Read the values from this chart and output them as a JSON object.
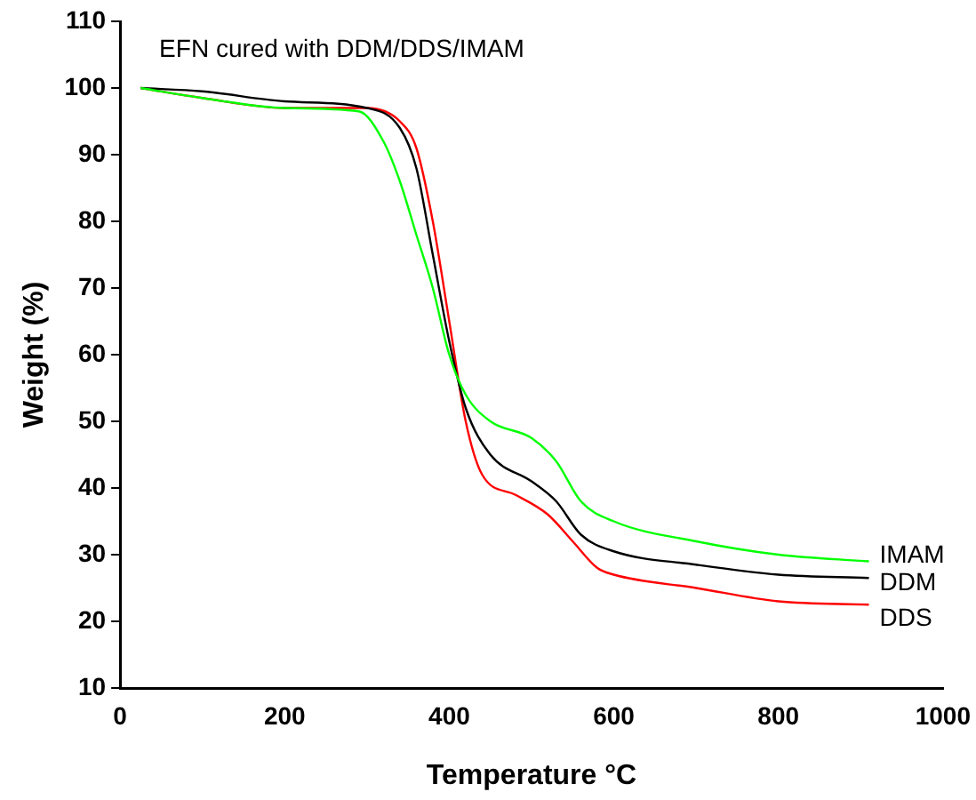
{
  "chart_data": {
    "type": "line",
    "title": "EFN cured with DDM/DDS/IMAM",
    "xlabel": "Temperature °C",
    "ylabel": "Weight (%)",
    "xlim": [
      0,
      1000
    ],
    "xticks": [
      0,
      200,
      400,
      600,
      800,
      1000
    ],
    "ylim": [
      10,
      110
    ],
    "yticks": [
      10,
      20,
      30,
      40,
      50,
      60,
      70,
      80,
      90,
      100,
      110
    ],
    "grid": false,
    "legend": false,
    "marker": "none",
    "line_style": "solid",
    "series": [
      {
        "name": "IMAM",
        "color": "#00ff00",
        "x": [
          25,
          100,
          200,
          290,
          320,
          340,
          360,
          380,
          400,
          420,
          450,
          500,
          530,
          560,
          600,
          700,
          800,
          910
        ],
        "values": [
          100,
          98.5,
          97,
          96.5,
          92,
          86,
          78,
          70,
          60,
          54,
          50,
          47.5,
          44,
          38,
          35,
          32,
          30,
          29
        ]
      },
      {
        "name": "DDM",
        "color": "#000000",
        "x": [
          25,
          100,
          200,
          300,
          340,
          360,
          380,
          400,
          420,
          450,
          500,
          530,
          560,
          600,
          700,
          800,
          910
        ],
        "values": [
          100,
          99.5,
          98,
          97,
          94,
          88,
          75,
          62,
          52,
          45,
          41,
          38,
          33,
          30.5,
          28.5,
          27,
          26.5
        ]
      },
      {
        "name": "DDS",
        "color": "#ff0000",
        "x": [
          25,
          100,
          200,
          300,
          340,
          360,
          380,
          400,
          420,
          440,
          480,
          520,
          550,
          580,
          600,
          700,
          800,
          910
        ],
        "values": [
          100,
          98.5,
          97,
          97,
          95,
          91,
          80,
          65,
          50,
          42,
          39,
          36,
          32,
          28,
          27,
          25,
          23,
          22.5
        ]
      }
    ]
  }
}
